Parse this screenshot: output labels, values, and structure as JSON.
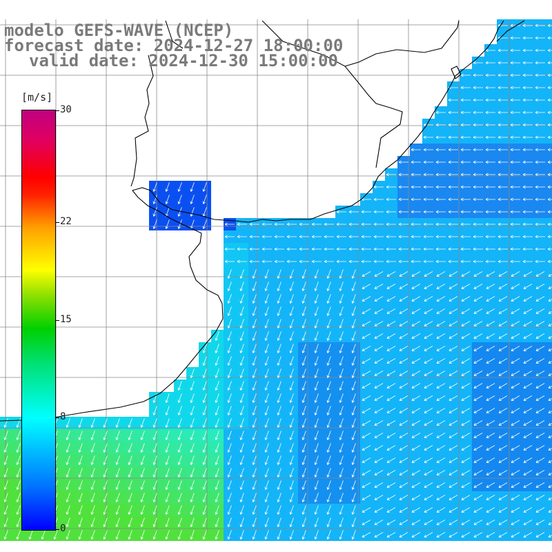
{
  "title": {
    "line1": "modelo GEFS-WAVE (NCEP)",
    "line2": "forecast date: 2024-12-27 18:00:00",
    "line3": "valid date: 2024-12-30 15:00:00"
  },
  "colorbar": {
    "unit": "[m/s]",
    "ticks": [
      "30",
      "22",
      "15",
      "8",
      "0"
    ],
    "tick_values": [
      30,
      22,
      15,
      8,
      0
    ],
    "min": 0,
    "max": 30
  },
  "map": {
    "variable": "wind speed and direction",
    "land_color": "#ffffff",
    "grid_color": "#808080",
    "coastline_color": "#000000"
  }
}
